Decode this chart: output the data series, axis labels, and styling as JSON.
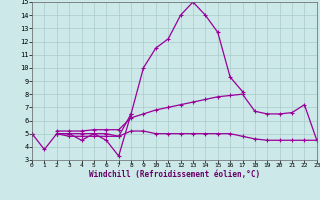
{
  "xlabel": "Windchill (Refroidissement éolien,°C)",
  "xlim": [
    0,
    23
  ],
  "ylim": [
    3,
    15
  ],
  "xticks": [
    0,
    1,
    2,
    3,
    4,
    5,
    6,
    7,
    8,
    9,
    10,
    11,
    12,
    13,
    14,
    15,
    16,
    17,
    18,
    19,
    20,
    21,
    22,
    23
  ],
  "yticks": [
    3,
    4,
    5,
    6,
    7,
    8,
    9,
    10,
    11,
    12,
    13,
    14,
    15
  ],
  "bg_color": "#cce8e8",
  "grid_color": "#aacccc",
  "line_color": "#990099",
  "line_width": 0.9,
  "marker_size": 3.5,
  "series1": [
    5.0,
    3.8,
    5.0,
    5.0,
    4.5,
    5.0,
    4.5,
    3.3,
    6.5,
    10.0,
    11.5,
    12.2,
    14.0,
    15.0,
    14.0,
    12.7,
    9.3,
    8.2,
    null,
    null,
    null,
    null,
    null,
    null
  ],
  "series2": [
    5.0,
    null,
    5.0,
    5.0,
    5.0,
    5.0,
    5.0,
    4.8,
    6.5,
    null,
    null,
    null,
    null,
    null,
    null,
    null,
    null,
    null,
    null,
    null,
    null,
    null,
    null,
    null
  ],
  "series3": [
    5.0,
    null,
    5.2,
    5.2,
    5.2,
    5.3,
    5.3,
    5.3,
    6.2,
    6.5,
    6.8,
    7.0,
    7.2,
    7.4,
    7.6,
    7.8,
    7.9,
    8.0,
    6.7,
    6.5,
    6.5,
    6.6,
    7.2,
    4.5
  ],
  "series4": [
    5.0,
    null,
    5.0,
    4.8,
    4.8,
    4.8,
    4.8,
    4.8,
    5.2,
    5.2,
    5.0,
    5.0,
    5.0,
    5.0,
    5.0,
    5.0,
    5.0,
    4.8,
    4.6,
    4.5,
    4.5,
    4.5,
    4.5,
    4.5
  ]
}
